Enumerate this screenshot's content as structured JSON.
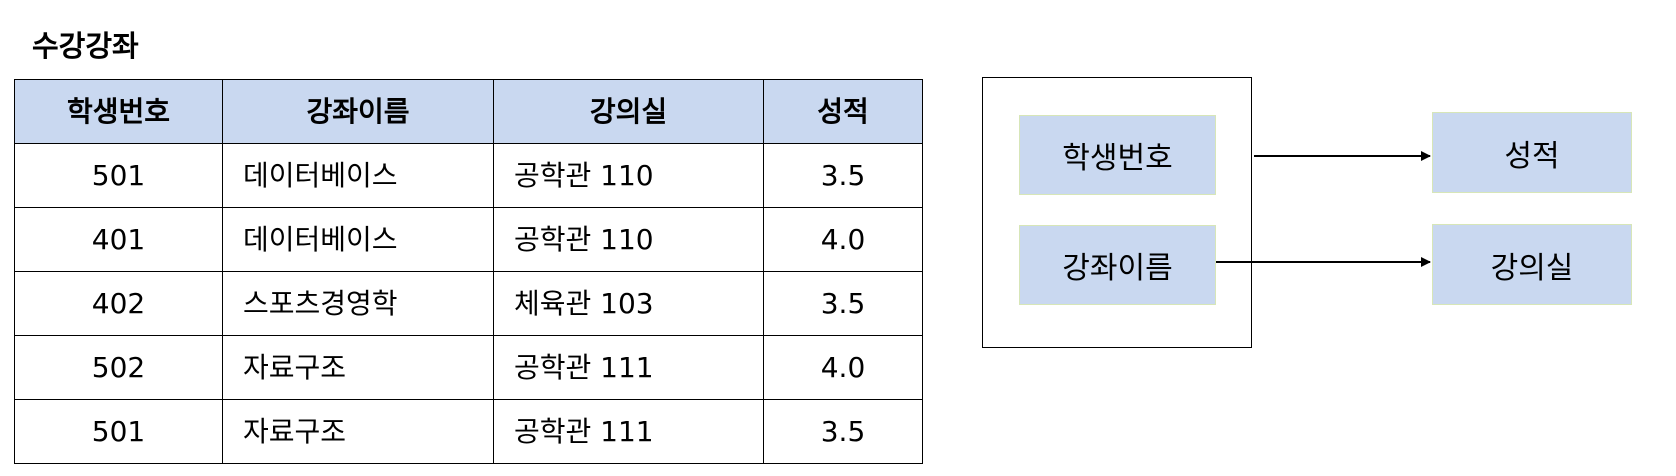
{
  "relation": {
    "name": "수강강좌",
    "columns": [
      "학생번호",
      "강좌이름",
      "강의실",
      "성적"
    ],
    "rows": [
      [
        "501",
        "데이터베이스",
        "공학관 110",
        "3.5"
      ],
      [
        "401",
        "데이터베이스",
        "공학관 110",
        "4.0"
      ],
      [
        "402",
        "스포츠경영학",
        "체육관 103",
        "3.5"
      ],
      [
        "502",
        "자료구조",
        "공학관 111",
        "4.0"
      ],
      [
        "501",
        "자료구조",
        "공학관 111",
        "3.5"
      ]
    ]
  },
  "dependency_diagram": {
    "determinants": [
      "학생번호",
      "강좌이름"
    ],
    "dependents": {
      "student_course_grade": "성적",
      "course_room": "강의실"
    }
  },
  "colors": {
    "header_fill": "#c9d8f0",
    "box_fill": "#c9d8f0",
    "box_border": "#d7e6b8"
  }
}
